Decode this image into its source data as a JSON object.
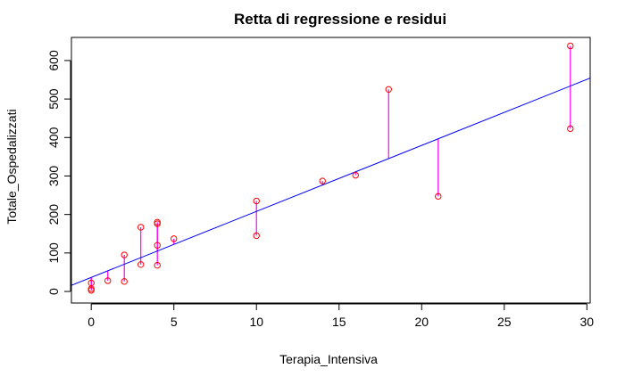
{
  "chart_data": {
    "type": "scatter",
    "title": "Retta di regressione e residui",
    "xlabel": "Terapia_Intensiva",
    "ylabel": "Totale_Ospedalizzati",
    "xlim": [
      -1.2,
      30.2
    ],
    "ylim": [
      -30,
      660
    ],
    "xticks": [
      0,
      5,
      10,
      15,
      20,
      25,
      30
    ],
    "yticks": [
      0,
      100,
      200,
      300,
      400,
      500,
      600
    ],
    "grid": false,
    "points": [
      {
        "x": 0,
        "y": 3
      },
      {
        "x": 0,
        "y": 7
      },
      {
        "x": 0,
        "y": 22
      },
      {
        "x": 1,
        "y": 28
      },
      {
        "x": 2,
        "y": 26
      },
      {
        "x": 2,
        "y": 95
      },
      {
        "x": 3,
        "y": 70
      },
      {
        "x": 3,
        "y": 167
      },
      {
        "x": 4,
        "y": 68
      },
      {
        "x": 4,
        "y": 120
      },
      {
        "x": 4,
        "y": 176
      },
      {
        "x": 4,
        "y": 180
      },
      {
        "x": 5,
        "y": 137
      },
      {
        "x": 10,
        "y": 145
      },
      {
        "x": 10,
        "y": 235
      },
      {
        "x": 14,
        "y": 287
      },
      {
        "x": 16,
        "y": 302
      },
      {
        "x": 18,
        "y": 525
      },
      {
        "x": 21,
        "y": 247
      },
      {
        "x": 29,
        "y": 423
      },
      {
        "x": 29,
        "y": 638
      }
    ],
    "regression": {
      "intercept": 36.5,
      "slope": 17.15
    },
    "colors": {
      "points": "#ff0000",
      "regression_line": "#0000ff",
      "residuals": "#ff00ff",
      "axes": "#000000"
    }
  }
}
